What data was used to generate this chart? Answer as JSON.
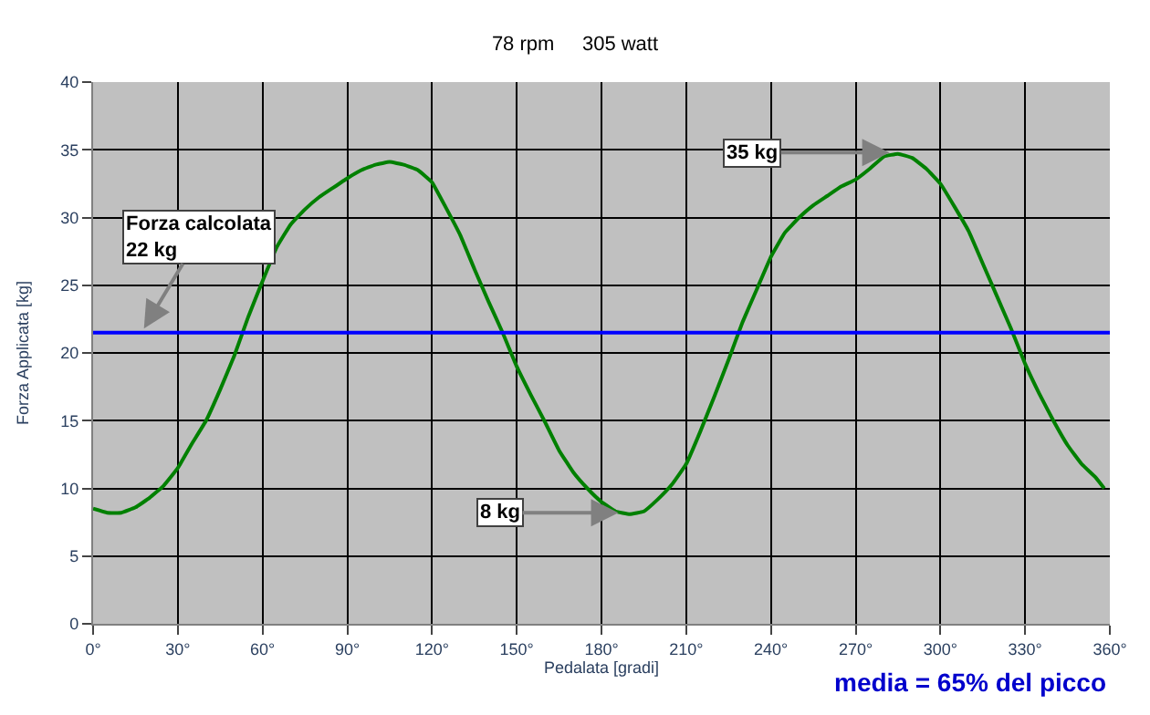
{
  "chart_data": {
    "type": "line",
    "title": "78 rpm     305 watt",
    "xlabel": "Pedalata [gradi]",
    "ylabel": "Forza Applicata [kg]",
    "x": [
      0,
      5,
      10,
      15,
      20,
      25,
      30,
      35,
      40,
      45,
      50,
      55,
      60,
      65,
      70,
      75,
      80,
      85,
      90,
      95,
      100,
      105,
      110,
      115,
      120,
      125,
      130,
      135,
      140,
      145,
      150,
      155,
      160,
      165,
      170,
      175,
      180,
      185,
      190,
      195,
      200,
      205,
      210,
      215,
      220,
      225,
      230,
      235,
      240,
      245,
      250,
      255,
      260,
      265,
      270,
      275,
      280,
      285,
      290,
      295,
      300,
      305,
      310,
      315,
      320,
      325,
      330,
      335,
      340,
      345,
      350,
      355,
      358
    ],
    "series": [
      {
        "color": "#008000",
        "values": [
          8.5,
          8.2,
          8.2,
          8.6,
          9.3,
          10.2,
          11.5,
          13.3,
          15,
          17.3,
          19.8,
          22.7,
          25.3,
          27.8,
          29.5,
          30.6,
          31.5,
          32.2,
          32.9,
          33.5,
          33.9,
          34.1,
          33.9,
          33.5,
          32.6,
          30.7,
          28.7,
          26.2,
          23.8,
          21.5,
          19,
          16.9,
          14.9,
          12.8,
          11.2,
          10,
          9,
          8.3,
          8.1,
          8.3,
          9.2,
          10.3,
          11.8,
          14.2,
          16.8,
          19.5,
          22.3,
          24.7,
          27.1,
          28.9,
          30,
          30.9,
          31.6,
          32.3,
          32.8,
          33.6,
          34.5,
          34.7,
          34.4,
          33.6,
          32.5,
          30.8,
          29,
          26.6,
          24.2,
          21.8,
          19.2,
          17,
          15,
          13.2,
          11.8,
          10.8,
          10
        ]
      }
    ],
    "xlim": [
      0,
      360
    ],
    "xticks": [
      {
        "value": 0,
        "label": "0°"
      },
      {
        "value": 30,
        "label": "30°"
      },
      {
        "value": 60,
        "label": "60°"
      },
      {
        "value": 90,
        "label": "90°"
      },
      {
        "value": 120,
        "label": "120°"
      },
      {
        "value": 150,
        "label": "150°"
      },
      {
        "value": 180,
        "label": "180°"
      },
      {
        "value": 210,
        "label": "210°"
      },
      {
        "value": 240,
        "label": "240°"
      },
      {
        "value": 270,
        "label": "270°"
      },
      {
        "value": 300,
        "label": "300°"
      },
      {
        "value": 330,
        "label": "330°"
      },
      {
        "value": 360,
        "label": "360°"
      }
    ],
    "ylim": [
      0,
      40
    ],
    "yticks": [
      0,
      5,
      10,
      15,
      20,
      25,
      30,
      35,
      40
    ],
    "ref_lines": [
      {
        "axis": "y",
        "value": 21.5,
        "color": "#0000ff"
      }
    ],
    "annotations": [
      {
        "text": "Forza calcolata\n22 kg",
        "x": 18,
        "y": 21.8
      },
      {
        "text": "35 kg",
        "x": 282,
        "y": 34.8
      },
      {
        "text": "8 kg",
        "x": 186,
        "y": 8.2
      },
      "media = 65% del picco"
    ],
    "grid": true,
    "legend": false,
    "marker": "none",
    "line_style": "solid"
  }
}
